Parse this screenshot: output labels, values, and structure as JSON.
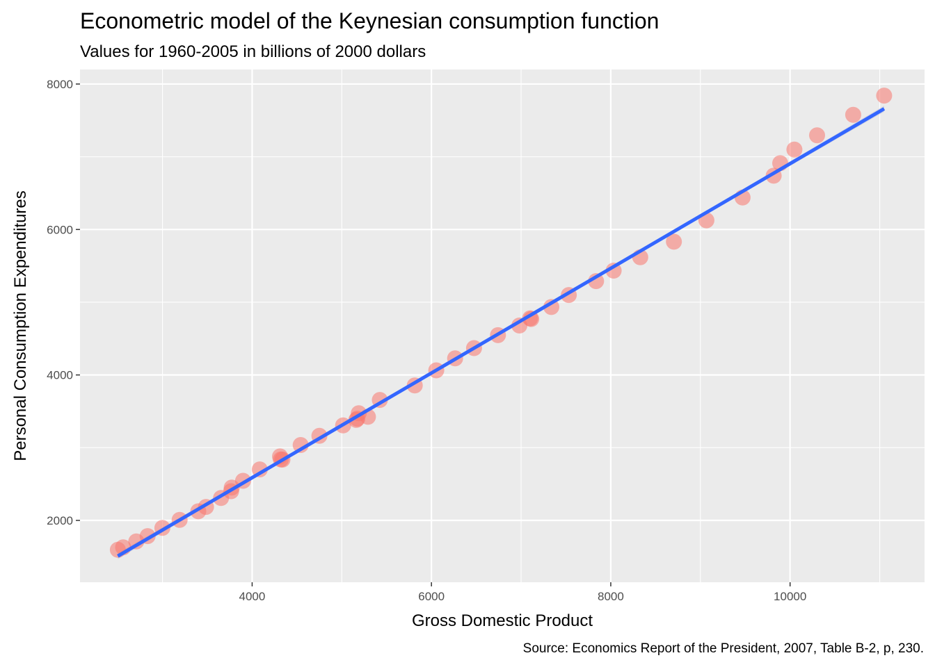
{
  "chart_data": {
    "type": "scatter",
    "title": "Econometric model of the Keynesian consumption function",
    "subtitle": "Values for 1960-2005 in billions of 2000 dollars",
    "xlabel": "Gross Domestic Product",
    "ylabel": "Personal Consumption Expenditures",
    "caption": "Source: Economics Report of the President, 2007, Table B-2, p, 230.",
    "xlim": [
      2080,
      11500
    ],
    "ylim": [
      1150,
      8200
    ],
    "x_ticks": [
      4000,
      6000,
      8000,
      10000
    ],
    "x_tick_labels": [
      "4000",
      "6000",
      "8000",
      "10000"
    ],
    "y_ticks": [
      2000,
      4000,
      6000,
      8000
    ],
    "y_tick_labels": [
      "2000",
      "4000",
      "6000",
      "8000"
    ],
    "x_minor_ticks": [
      3000,
      5000,
      7000,
      9000,
      11000
    ],
    "y_minor_ticks": [
      3000,
      5000,
      7000
    ],
    "grid": true,
    "colors": {
      "panel_background": "#ebebeb",
      "grid": "#ffffff",
      "point": "#f8766d",
      "fit_line": "#3366ff",
      "confidence_band": "#c6c6d9"
    },
    "series": [
      {
        "name": "observations",
        "x": [
          2502,
          2561,
          2708,
          2834,
          2999,
          3191,
          3399,
          3485,
          3653,
          3765,
          3772,
          3899,
          4085,
          4320,
          4311,
          4338,
          4541,
          4750,
          5015,
          5173,
          5162,
          5292,
          5189,
          5424,
          5814,
          6054,
          6264,
          6475,
          6742,
          6981,
          7113,
          7100,
          7337,
          7532,
          7836,
          8032,
          8329,
          8704,
          9067,
          9470,
          9817,
          9890,
          10048,
          10301,
          10704,
          11049
        ],
        "y": [
          1597,
          1630,
          1712,
          1784,
          1897,
          2007,
          2125,
          2186,
          2308,
          2401,
          2451,
          2545,
          2701,
          2839,
          2880,
          2836,
          3037,
          3163,
          3306,
          3399,
          3382,
          3425,
          3473,
          3657,
          3855,
          4064,
          4228,
          4369,
          4547,
          4680,
          4770,
          4779,
          4934,
          5099,
          5290,
          5434,
          5619,
          5832,
          6126,
          6439,
          6739,
          6911,
          7099,
          7295,
          7577,
          7841
        ]
      },
      {
        "name": "linear fit",
        "x": [
          2502,
          11049
        ],
        "y": [
          1510,
          7660
        ]
      }
    ]
  }
}
